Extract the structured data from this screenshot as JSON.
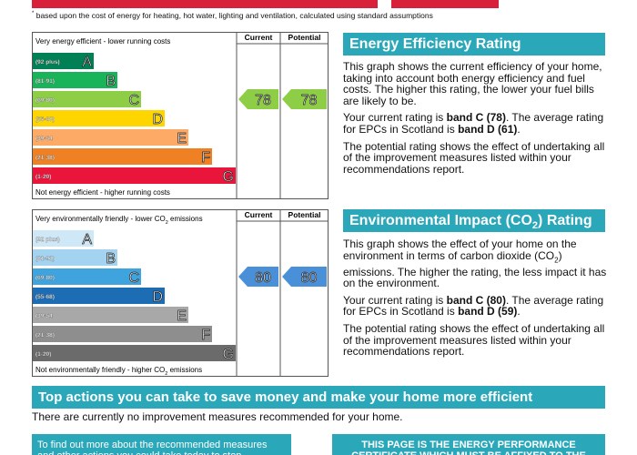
{
  "footnote": {
    "mark": "*",
    "text": "based upon the cost of energy for heating, hot water, lighting and ventilation, calculated using standard assumptions"
  },
  "energy": {
    "columns": [
      "Current",
      "Potential"
    ],
    "top_label": [
      {
        "text": "Very energy efficient - lower running costs"
      }
    ],
    "bottom_label": [
      {
        "text": "Not energy efficient - higher running costs"
      }
    ],
    "bands": [
      {
        "range": "(92 plus)",
        "letter": "A",
        "color": "#008054"
      },
      {
        "range": "(81-91)",
        "letter": "B",
        "color": "#19b459"
      },
      {
        "range": "(69-80)",
        "letter": "C",
        "color": "#8dce46"
      },
      {
        "range": "(55-68)",
        "letter": "D",
        "color": "#ffd500"
      },
      {
        "range": "(39-54",
        "letter": "E",
        "color": "#fcaa65"
      },
      {
        "range": "(21-38)",
        "letter": "F",
        "color": "#ef8023"
      },
      {
        "range": "(1-20)",
        "letter": "G",
        "color": "#e9153b"
      }
    ],
    "current": 78,
    "potential": 78,
    "arrow_color": "#8dce46",
    "title": [
      {
        "text": "Energy Efficiency Rating"
      }
    ],
    "paragraphs": [
      [
        {
          "text": "This graph shows the current efficiency of your home, taking into account both energy efficiency and fuel costs. The higher this rating, the lower your fuel bills are likely to be."
        }
      ],
      [
        {
          "text": "Your current rating is "
        },
        {
          "text": "band C (78)",
          "bold": true
        },
        {
          "text": ". The average rating for EPCs in Scotland is "
        },
        {
          "text": "band D (61)",
          "bold": true
        },
        {
          "text": "."
        }
      ],
      [
        {
          "text": "The potential rating shows the effect of undertaking all of the improvement measures listed within your recommendations report."
        }
      ]
    ]
  },
  "environment": {
    "columns": [
      "Current",
      "Potential"
    ],
    "top_label": [
      {
        "text": "Very environmentally friendly - lower CO"
      },
      {
        "text": "2",
        "sub": true
      },
      {
        "text": " emissions"
      }
    ],
    "bottom_label": [
      {
        "text": "Not environmentally friendly - higher CO"
      },
      {
        "text": "2",
        "sub": true
      },
      {
        "text": " emissions"
      }
    ],
    "bands": [
      {
        "range": "(92 plus)",
        "letter": "A",
        "color": "#cfe8f7"
      },
      {
        "range": "(81-91)",
        "letter": "B",
        "color": "#a3d3f0"
      },
      {
        "range": "(69-80)",
        "letter": "C",
        "color": "#3fa3de"
      },
      {
        "range": "(55-68)",
        "letter": "D",
        "color": "#1c6db4"
      },
      {
        "range": "(39-54",
        "letter": "E",
        "color": "#a8a8a8"
      },
      {
        "range": "(21-38)",
        "letter": "F",
        "color": "#8e8e8e"
      },
      {
        "range": "(1-20)",
        "letter": "G",
        "color": "#6b6b6b"
      }
    ],
    "current": 80,
    "potential": 80,
    "arrow_color": "#4a90d9",
    "title": [
      {
        "text": "Environmental Impact (CO"
      },
      {
        "text": "2",
        "sub": true
      },
      {
        "text": ") Rating"
      }
    ],
    "paragraphs": [
      [
        {
          "text": "This graph shows the effect of your home on the environment in terms of carbon dioxide (CO"
        },
        {
          "text": "2",
          "sub": true
        },
        {
          "text": ") emissions. The higher the rating, the less impact it has on the environment."
        }
      ],
      [
        {
          "text": "Your current rating is "
        },
        {
          "text": "band C (80)",
          "bold": true
        },
        {
          "text": ". The average rating for EPCs in Scotland is "
        },
        {
          "text": "band D (59)",
          "bold": true
        },
        {
          "text": "."
        }
      ],
      [
        {
          "text": "The potential rating shows the effect of undertaking all of the improvement measures listed within your recommendations report."
        }
      ]
    ]
  },
  "actions": {
    "title": "Top actions you can take to save money and make your home more efficient",
    "text": "There are currently no improvement measures recommended for your home."
  },
  "bottom_left": "To find out more about the recommended measures and other actions you could take today to stop",
  "bottom_right": "THIS PAGE IS THE ENERGY PERFORMANCE CERTIFICATE WHICH MUST BE AFFIXED TO THE"
}
